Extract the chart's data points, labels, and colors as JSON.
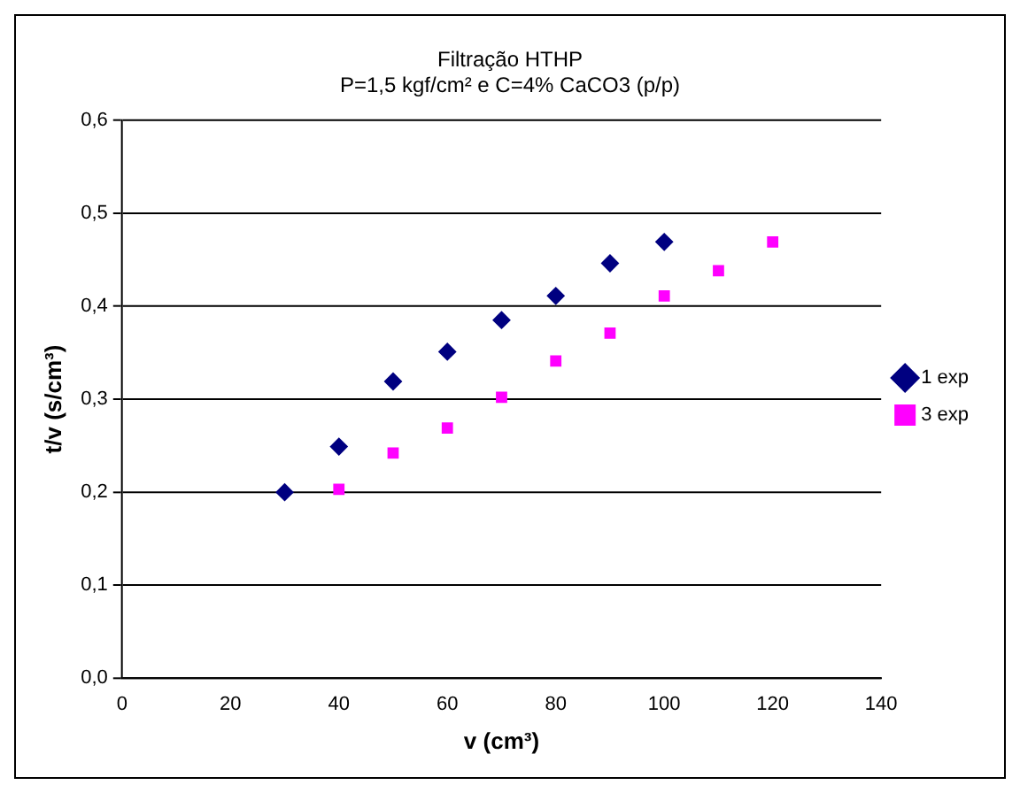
{
  "chart_data": {
    "type": "scatter",
    "title": "Filtração HTHP",
    "subtitle": "P=1,5 kgf/cm² e C=4% CaCO3 (p/p)",
    "xlabel": "v (cm³)",
    "ylabel": "t/v (s/cm³)",
    "series": [
      {
        "name": "1 exp",
        "color": "#000080",
        "marker": "diamond",
        "x": [
          30,
          40,
          50,
          60,
          70,
          80,
          90,
          100
        ],
        "values": [
          0.2,
          0.249,
          0.319,
          0.351,
          0.385,
          0.411,
          0.446,
          0.469
        ]
      },
      {
        "name": "3 exp",
        "color": "#ff00ff",
        "marker": "square",
        "x": [
          40,
          50,
          60,
          70,
          80,
          90,
          100,
          110,
          120
        ],
        "values": [
          0.203,
          0.242,
          0.269,
          0.302,
          0.341,
          0.371,
          0.411,
          0.438,
          0.469
        ]
      }
    ],
    "xlim": [
      0,
      140
    ],
    "xticks": [
      0,
      20,
      40,
      60,
      80,
      100,
      120,
      140
    ],
    "ylim": [
      0,
      0.6
    ],
    "yticks": [
      {
        "value": 0,
        "label": "0,0"
      },
      {
        "value": 0.1,
        "label": "0,1"
      },
      {
        "value": 0.2,
        "label": "0,2"
      },
      {
        "value": 0.3,
        "label": "0,3"
      },
      {
        "value": 0.4,
        "label": "0,4"
      },
      {
        "value": 0.5,
        "label": "0,5"
      },
      {
        "value": 0.6,
        "label": "0,6"
      }
    ],
    "grid": "y",
    "legend": "right"
  }
}
